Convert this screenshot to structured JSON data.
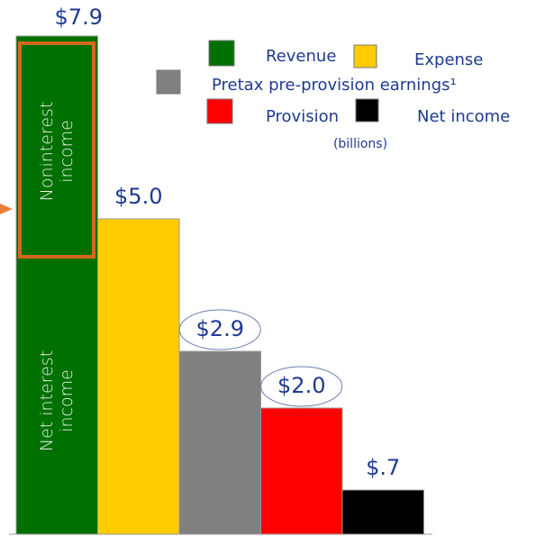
{
  "chart_data": {
    "type": "bar",
    "categories": [
      "Revenue",
      "Expense",
      "Pretax pre-provision earnings¹",
      "Provision",
      "Net income"
    ],
    "values": [
      7.9,
      5.0,
      2.9,
      2.0,
      0.7
    ],
    "value_labels": [
      "$7.9",
      "$5.0",
      "$2.9",
      "$2.0",
      "$.7"
    ],
    "colors": [
      "#007000",
      "#ffcc00",
      "#808080",
      "#ff0000",
      "#000000"
    ],
    "unit_note": "(billions)",
    "noninterest_label": [
      "Noninterest",
      "income"
    ],
    "net_interest_label": [
      "Net interest",
      "income"
    ]
  }
}
